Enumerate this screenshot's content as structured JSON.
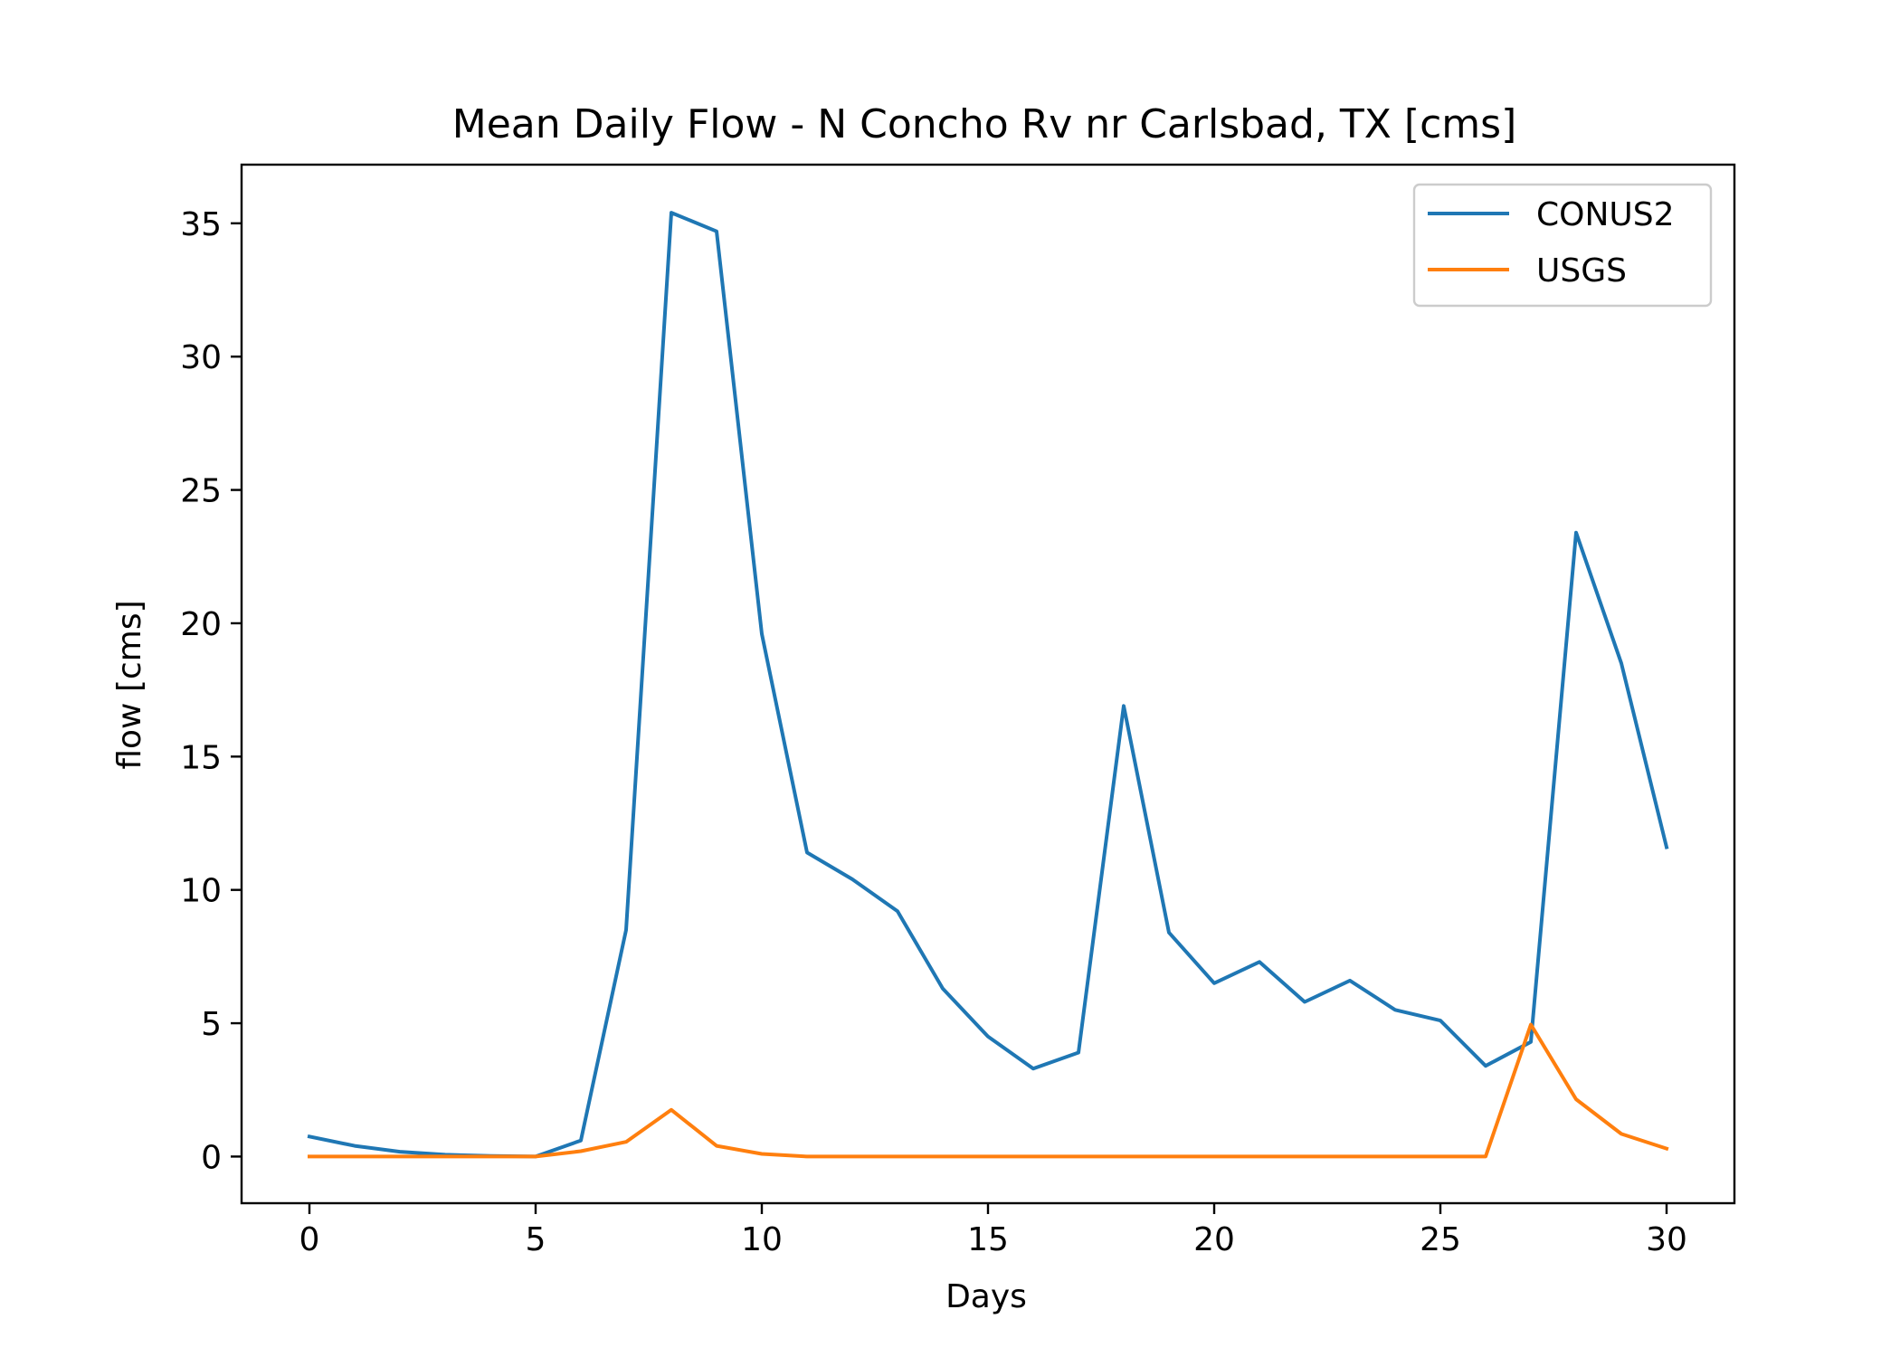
{
  "chart_data": {
    "type": "line",
    "title": "Mean Daily Flow - N Concho Rv nr Carlsbad, TX [cms]",
    "xlabel": "Days",
    "ylabel": "flow [cms]",
    "xlim": [
      -1.5,
      31.5
    ],
    "ylim": [
      -1.75,
      37.2
    ],
    "xticks": [
      0,
      5,
      10,
      15,
      20,
      25,
      30
    ],
    "yticks": [
      0,
      5,
      10,
      15,
      20,
      25,
      30,
      35
    ],
    "grid": false,
    "legend": "top-right",
    "x": [
      0,
      1,
      2,
      3,
      4,
      5,
      6,
      7,
      8,
      9,
      10,
      11,
      12,
      13,
      14,
      15,
      16,
      17,
      18,
      19,
      20,
      21,
      22,
      23,
      24,
      25,
      26,
      27,
      28,
      29,
      30
    ],
    "series": [
      {
        "name": "CONUS2",
        "color": "#1f77b4",
        "values": [
          0.75,
          0.4,
          0.18,
          0.07,
          0.02,
          0.0,
          0.6,
          8.5,
          35.4,
          34.7,
          19.6,
          11.4,
          10.4,
          9.2,
          6.3,
          4.5,
          3.3,
          3.9,
          16.9,
          8.4,
          6.5,
          7.3,
          5.8,
          6.6,
          5.5,
          5.1,
          3.4,
          4.3,
          23.4,
          18.5,
          11.6
        ]
      },
      {
        "name": "USGS",
        "color": "#ff7f0e",
        "values": [
          0.0,
          0.0,
          0.0,
          0.0,
          0.0,
          0.0,
          0.2,
          0.55,
          1.75,
          0.4,
          0.1,
          0.0,
          0.0,
          0.0,
          0.0,
          0.0,
          0.0,
          0.0,
          0.0,
          0.0,
          0.0,
          0.0,
          0.0,
          0.0,
          0.0,
          0.0,
          0.0,
          4.95,
          2.15,
          0.85,
          0.3
        ]
      }
    ]
  }
}
